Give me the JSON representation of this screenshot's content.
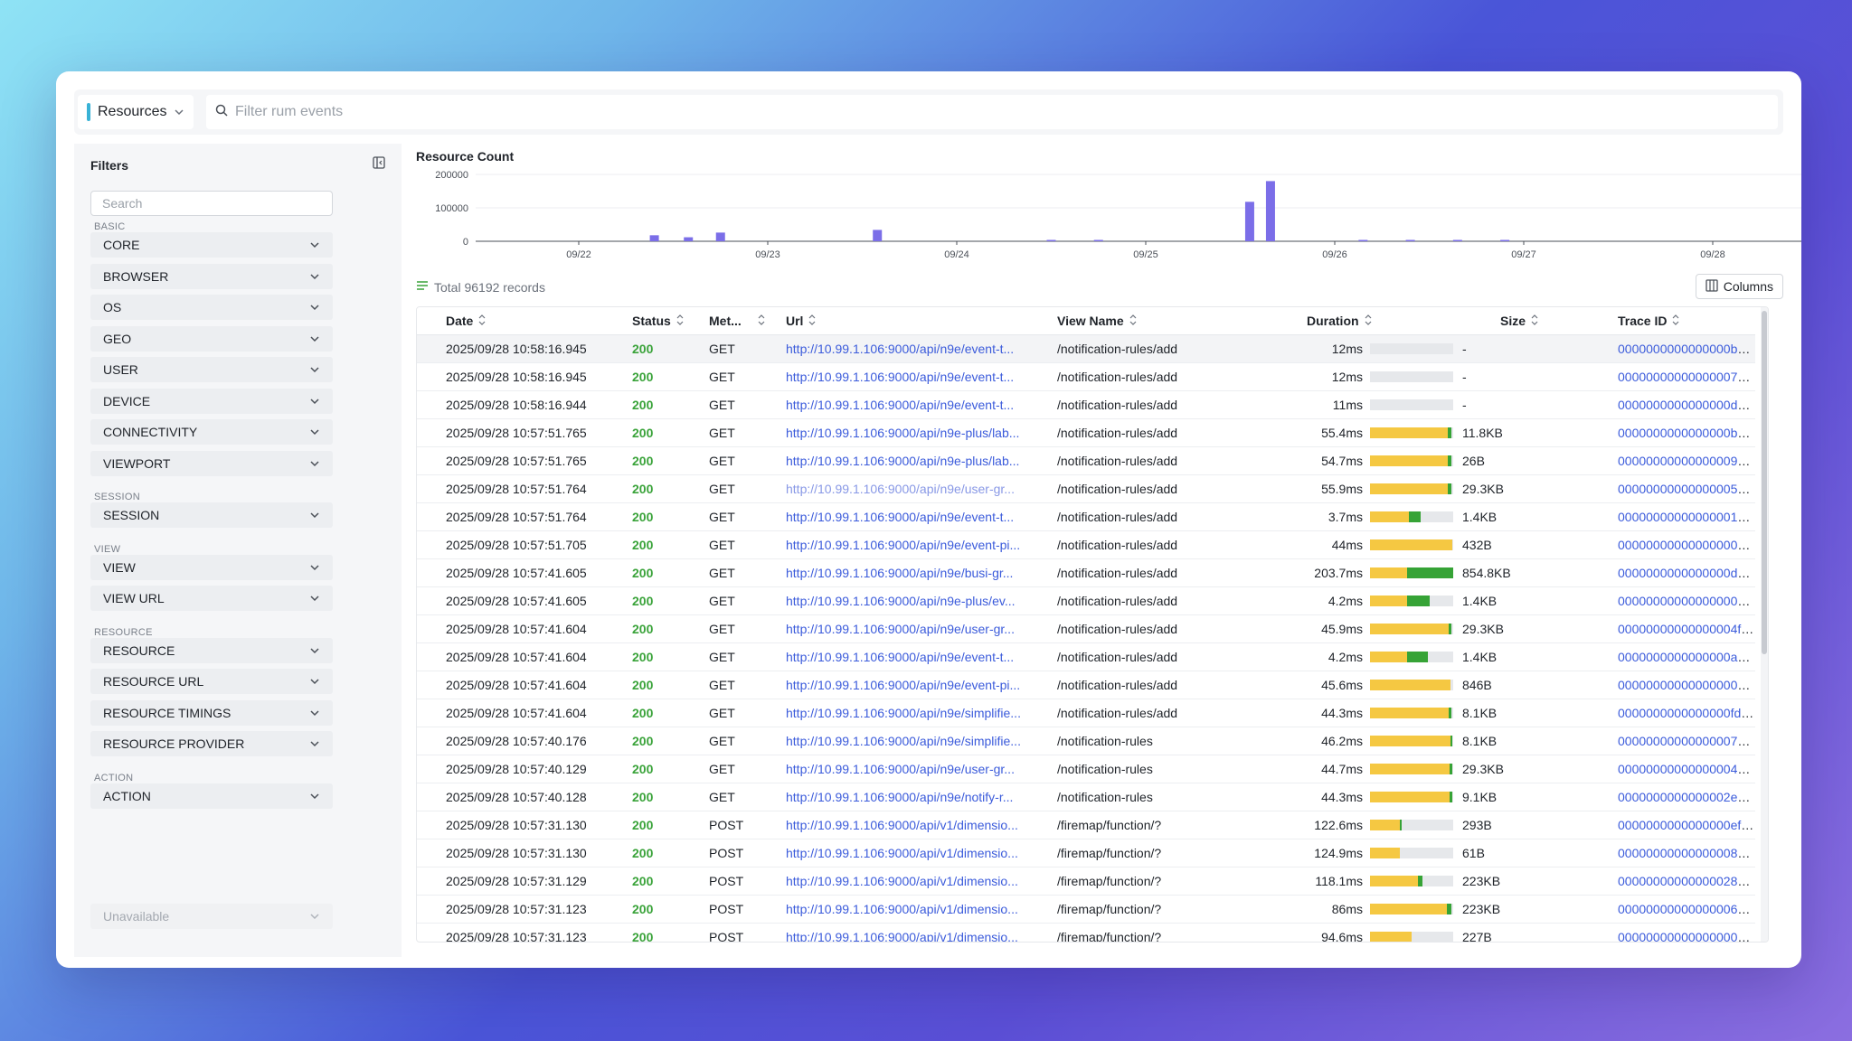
{
  "topbar": {
    "type_label": "Resources",
    "filter_placeholder": "Filter rum events"
  },
  "sidebar": {
    "title": "Filters",
    "search_placeholder": "Search",
    "groups": [
      {
        "label": "BASIC",
        "items": [
          "CORE",
          "BROWSER",
          "OS",
          "GEO",
          "USER",
          "DEVICE",
          "CONNECTIVITY",
          "VIEWPORT"
        ]
      },
      {
        "label": "SESSION",
        "items": [
          "SESSION"
        ]
      },
      {
        "label": "VIEW",
        "items": [
          "VIEW",
          "VIEW URL"
        ]
      },
      {
        "label": "RESOURCE",
        "items": [
          "RESOURCE",
          "RESOURCE URL",
          "RESOURCE TIMINGS",
          "RESOURCE PROVIDER"
        ]
      },
      {
        "label": "ACTION",
        "items": [
          "ACTION"
        ]
      }
    ],
    "unavailable_label": "Unavailable"
  },
  "chart": {
    "title": "Resource Count",
    "y_ticks": [
      "200000",
      "100000",
      "0"
    ],
    "x_ticks": [
      "09/22",
      "09/23",
      "09/24",
      "09/25",
      "09/26",
      "09/27",
      "09/28"
    ],
    "bar_color": "#7b6ee8",
    "bars": [
      {
        "day": 0.4,
        "value": 18000
      },
      {
        "day": 0.58,
        "value": 12000
      },
      {
        "day": 0.75,
        "value": 26000
      },
      {
        "day": 1.58,
        "value": 34000
      },
      {
        "day": 2.5,
        "value": 2000
      },
      {
        "day": 2.75,
        "value": 3000
      },
      {
        "day": 3.55,
        "value": 118000
      },
      {
        "day": 3.66,
        "value": 180000
      },
      {
        "day": 4.15,
        "value": 4000
      },
      {
        "day": 4.4,
        "value": 2000
      },
      {
        "day": 4.65,
        "value": 2000
      },
      {
        "day": 4.9,
        "value": 3000
      }
    ]
  },
  "records_label": "Total 96192 records",
  "columns_label": "Columns",
  "colors": {
    "status_ok": "#3aa33a",
    "link": "#3b5bdb",
    "duration_yellow": "#f5c842",
    "duration_green": "#36a336"
  },
  "table": {
    "headers": {
      "date": "Date",
      "status": "Status",
      "method": "Met...",
      "url": "Url",
      "view": "View Name",
      "duration": "Duration",
      "size": "Size",
      "trace": "Trace ID"
    },
    "rows": [
      {
        "date": "2025/09/28 10:58:16.945",
        "status": "200",
        "method": "GET",
        "url": "http://10.99.1.106:9000/api/n9e/event-t...",
        "view": "/notification-rules/add",
        "duration": "12ms",
        "y": 0,
        "g": 0,
        "size": "-",
        "trace": "0000000000000000b9d85354..."
      },
      {
        "date": "2025/09/28 10:58:16.945",
        "status": "200",
        "method": "GET",
        "url": "http://10.99.1.106:9000/api/n9e/event-t...",
        "view": "/notification-rules/add",
        "duration": "12ms",
        "y": 0,
        "g": 0,
        "size": "-",
        "trace": "000000000000000079de70a3..."
      },
      {
        "date": "2025/09/28 10:58:16.944",
        "status": "200",
        "method": "GET",
        "url": "http://10.99.1.106:9000/api/n9e/event-t...",
        "view": "/notification-rules/add",
        "duration": "11ms",
        "y": 0,
        "g": 0,
        "size": "-",
        "trace": "0000000000000000d20f1905..."
      },
      {
        "date": "2025/09/28 10:57:51.765",
        "status": "200",
        "method": "GET",
        "url": "http://10.99.1.106:9000/api/n9e-plus/lab...",
        "view": "/notification-rules/add",
        "duration": "55.4ms",
        "y": 0.93,
        "g": 0.05,
        "size": "11.8KB",
        "trace": "0000000000000000b41da222..."
      },
      {
        "date": "2025/09/28 10:57:51.765",
        "status": "200",
        "method": "GET",
        "url": "http://10.99.1.106:9000/api/n9e-plus/lab...",
        "view": "/notification-rules/add",
        "duration": "54.7ms",
        "y": 0.93,
        "g": 0.05,
        "size": "26B",
        "trace": "0000000000000000902917bb..."
      },
      {
        "date": "2025/09/28 10:57:51.764",
        "status": "200",
        "method": "GET",
        "url": "http://10.99.1.106:9000/api/n9e/user-gr...",
        "view": "/notification-rules/add",
        "duration": "55.9ms",
        "y": 0.93,
        "g": 0.05,
        "size": "29.3KB",
        "trace": "0000000000000000565935f7...",
        "visited": true
      },
      {
        "date": "2025/09/28 10:57:51.764",
        "status": "200",
        "method": "GET",
        "url": "http://10.99.1.106:9000/api/n9e/event-t...",
        "view": "/notification-rules/add",
        "duration": "3.7ms",
        "y": 0.47,
        "g": 0.14,
        "size": "1.4KB",
        "trace": "0000000000000000166f876fd..."
      },
      {
        "date": "2025/09/28 10:57:51.705",
        "status": "200",
        "method": "GET",
        "url": "http://10.99.1.106:9000/api/n9e/event-pi...",
        "view": "/notification-rules/add",
        "duration": "44ms",
        "y": 0.99,
        "g": 0,
        "size": "432B",
        "trace": "0000000000000000094902dea..."
      },
      {
        "date": "2025/09/28 10:57:41.605",
        "status": "200",
        "method": "GET",
        "url": "http://10.99.1.106:9000/api/n9e/busi-gr...",
        "view": "/notification-rules/add",
        "duration": "203.7ms",
        "y": 0.45,
        "g": 0.55,
        "size": "854.8KB",
        "trace": "0000000000000000d9787438..."
      },
      {
        "date": "2025/09/28 10:57:41.605",
        "status": "200",
        "method": "GET",
        "url": "http://10.99.1.106:9000/api/n9e-plus/ev...",
        "view": "/notification-rules/add",
        "duration": "4.2ms",
        "y": 0.45,
        "g": 0.27,
        "size": "1.4KB",
        "trace": "000000000000000005037fadbb..."
      },
      {
        "date": "2025/09/28 10:57:41.604",
        "status": "200",
        "method": "GET",
        "url": "http://10.99.1.106:9000/api/n9e/user-gr...",
        "view": "/notification-rules/add",
        "duration": "45.9ms",
        "y": 0.95,
        "g": 0.03,
        "size": "29.3KB",
        "trace": "00000000000000004fddc5fbf..."
      },
      {
        "date": "2025/09/28 10:57:41.604",
        "status": "200",
        "method": "GET",
        "url": "http://10.99.1.106:9000/api/n9e/event-t...",
        "view": "/notification-rules/add",
        "duration": "4.2ms",
        "y": 0.45,
        "g": 0.25,
        "size": "1.4KB",
        "trace": "0000000000000000aaf768ded..."
      },
      {
        "date": "2025/09/28 10:57:41.604",
        "status": "200",
        "method": "GET",
        "url": "http://10.99.1.106:9000/api/n9e/event-pi...",
        "view": "/notification-rules/add",
        "duration": "45.6ms",
        "y": 0.97,
        "g": 0,
        "size": "846B",
        "trace": "0000000000000000091221290..."
      },
      {
        "date": "2025/09/28 10:57:41.604",
        "status": "200",
        "method": "GET",
        "url": "http://10.99.1.106:9000/api/n9e/simplifie...",
        "view": "/notification-rules/add",
        "duration": "44.3ms",
        "y": 0.95,
        "g": 0.03,
        "size": "8.1KB",
        "trace": "0000000000000000fdda40810..."
      },
      {
        "date": "2025/09/28 10:57:40.176",
        "status": "200",
        "method": "GET",
        "url": "http://10.99.1.106:9000/api/n9e/simplifie...",
        "view": "/notification-rules",
        "duration": "46.2ms",
        "y": 0.97,
        "g": 0.02,
        "size": "8.1KB",
        "trace": "0000000000000000789c7889..."
      },
      {
        "date": "2025/09/28 10:57:40.129",
        "status": "200",
        "method": "GET",
        "url": "http://10.99.1.106:9000/api/n9e/user-gr...",
        "view": "/notification-rules",
        "duration": "44.7ms",
        "y": 0.96,
        "g": 0.03,
        "size": "29.3KB",
        "trace": "0000000000000000432ce597..."
      },
      {
        "date": "2025/09/28 10:57:40.128",
        "status": "200",
        "method": "GET",
        "url": "http://10.99.1.106:9000/api/n9e/notify-r...",
        "view": "/notification-rules",
        "duration": "44.3ms",
        "y": 0.96,
        "g": 0.03,
        "size": "9.1KB",
        "trace": "0000000000000002e07151a..."
      },
      {
        "date": "2025/09/28 10:57:31.130",
        "status": "200",
        "method": "POST",
        "url": "http://10.99.1.106:9000/api/v1/dimensio...",
        "view": "/firemap/function/?",
        "duration": "122.6ms",
        "y": 0.36,
        "g": 0.02,
        "size": "293B",
        "trace": "0000000000000000ef89cc12ff..."
      },
      {
        "date": "2025/09/28 10:57:31.130",
        "status": "200",
        "method": "POST",
        "url": "http://10.99.1.106:9000/api/v1/dimensio...",
        "view": "/firemap/function/?",
        "duration": "124.9ms",
        "y": 0.36,
        "g": 0,
        "size": "61B",
        "trace": "0000000000000000848c1647..."
      },
      {
        "date": "2025/09/28 10:57:31.129",
        "status": "200",
        "method": "POST",
        "url": "http://10.99.1.106:9000/api/v1/dimensio...",
        "view": "/firemap/function/?",
        "duration": "118.1ms",
        "y": 0.58,
        "g": 0.05,
        "size": "223KB",
        "trace": "0000000000000002817cf31..."
      },
      {
        "date": "2025/09/28 10:57:31.123",
        "status": "200",
        "method": "POST",
        "url": "http://10.99.1.106:9000/api/v1/dimensio...",
        "view": "/firemap/function/?",
        "duration": "86ms",
        "y": 0.92,
        "g": 0.06,
        "size": "223KB",
        "trace": "0000000000000000622c2fcb9..."
      },
      {
        "date": "2025/09/28 10:57:31.123",
        "status": "200",
        "method": "POST",
        "url": "http://10.99.1.106:9000/api/v1/dimensio...",
        "view": "/firemap/function/?",
        "duration": "94.6ms",
        "y": 0.5,
        "g": 0,
        "size": "227B",
        "trace": "000000000000000007f4a295..."
      }
    ]
  }
}
